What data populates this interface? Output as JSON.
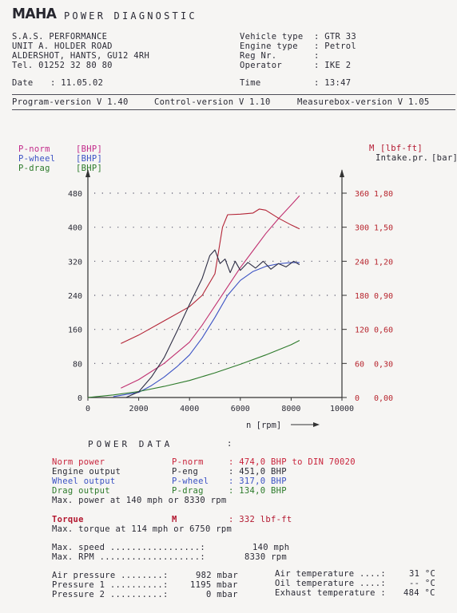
{
  "header": {
    "brand": "MAHA",
    "title": "POWER DIAGNOSTIC"
  },
  "customer": {
    "line1": "S.A.S. PERFORMANCE",
    "line2": "UNIT A.  HOLDER ROAD",
    "line3": "ALDERSHOT,  HANTS,  GU12 4RH",
    "line4": "Tel.  01252 32 80 80",
    "date_label": "Date",
    "date_value": ": 11.05.02"
  },
  "vehicle": {
    "type_label": "Vehicle type",
    "type_value": ": GTR 33",
    "engine_label": "Engine type",
    "engine_value": ": Petrol",
    "reg_label": "Reg Nr.",
    "reg_value": ":",
    "operator_label": "Operator",
    "operator_value": ": IKE 2",
    "time_label": "Time",
    "time_value": ": 13:47"
  },
  "versions": {
    "program": "Program-version V 1.40",
    "control": "Control-version V 1.10",
    "measurebox": "Measurebox-version V 1.05"
  },
  "colors": {
    "p_norm": "#c03070",
    "p_wheel": "#3b52c4",
    "p_drag": "#2c7a2a",
    "torque": "#b32436",
    "intake": "#d06050",
    "pressure": "#2e2e45"
  },
  "chart_data": {
    "type": "line",
    "legend_left": [
      {
        "name": "P-norm",
        "unit": "[BHP]"
      },
      {
        "name": "P-wheel",
        "unit": "[BHP]"
      },
      {
        "name": "P-drag",
        "unit": "[BHP]"
      }
    ],
    "legend_right": [
      {
        "name": "M",
        "unit": "[lbf-ft]"
      },
      {
        "name": "Intake.pr.",
        "unit": "[bar]"
      }
    ],
    "xlabel": "n [rpm]",
    "xlim": [
      0,
      10000
    ],
    "x_ticks": [
      "0",
      "2000",
      "4000",
      "6000",
      "8000",
      "10000"
    ],
    "ylim_left": [
      0,
      480
    ],
    "y_ticks_left": [
      "0",
      "80",
      "160",
      "240",
      "320",
      "400",
      "480"
    ],
    "y_ticks_torque": [
      "0",
      "60",
      "120",
      "180",
      "240",
      "300",
      "360"
    ],
    "y_ticks_pressure": [
      "0,00",
      "0,30",
      "0,60",
      "0,90",
      "1,20",
      "1,50",
      "1,80"
    ],
    "ylim_torque": [
      0,
      360
    ],
    "ylim_pressure": [
      0,
      1.8
    ],
    "series": [
      {
        "name": "P-norm",
        "color": "#c03070",
        "axis": "left",
        "x": [
          1300,
          2000,
          3000,
          4000,
          4500,
          5000,
          5500,
          6000,
          6500,
          7000,
          7500,
          8000,
          8330
        ],
        "y": [
          22,
          42,
          80,
          130,
          170,
          215,
          260,
          305,
          345,
          385,
          420,
          452,
          474
        ]
      },
      {
        "name": "P-wheel",
        "color": "#3b52c4",
        "axis": "left",
        "x": [
          1000,
          2000,
          2500,
          3000,
          3500,
          4000,
          4500,
          5000,
          5500,
          6000,
          6500,
          7000,
          7500,
          8000,
          8330
        ],
        "y": [
          2,
          12,
          28,
          48,
          72,
          100,
          140,
          188,
          240,
          275,
          296,
          308,
          314,
          317,
          317
        ]
      },
      {
        "name": "P-drag",
        "color": "#2c7a2a",
        "axis": "left",
        "x": [
          0,
          1000,
          2000,
          3000,
          4000,
          5000,
          6000,
          7000,
          8000,
          8330
        ],
        "y": [
          0,
          6,
          14,
          26,
          40,
          58,
          78,
          100,
          124,
          134
        ]
      },
      {
        "name": "M",
        "color": "#b32436",
        "axis": "torque",
        "x": [
          1300,
          2000,
          3000,
          4000,
          4500,
          5000,
          5300,
          5500,
          6000,
          6500,
          6750,
          7000,
          7500,
          8000,
          8330
        ],
        "y": [
          95,
          110,
          135,
          160,
          180,
          218,
          300,
          322,
          323,
          325,
          332,
          330,
          316,
          304,
          297
        ]
      },
      {
        "name": "Intake.pr.",
        "color": "#2e2e45",
        "axis": "pressure",
        "x": [
          1500,
          2000,
          2500,
          3000,
          3500,
          4000,
          4500,
          4800,
          5000,
          5200,
          5400,
          5600,
          5800,
          6000,
          6300,
          6600,
          6900,
          7200,
          7500,
          7800,
          8100,
          8330
        ],
        "y": [
          0.0,
          0.05,
          0.18,
          0.35,
          0.58,
          0.82,
          1.05,
          1.25,
          1.3,
          1.18,
          1.22,
          1.1,
          1.2,
          1.12,
          1.19,
          1.14,
          1.2,
          1.13,
          1.18,
          1.15,
          1.2,
          1.17
        ]
      }
    ],
    "grid": true
  },
  "power_data": {
    "title": "POWER DATA",
    "colon": ":",
    "rows": [
      {
        "label": "Norm power",
        "sym": "P-norm",
        "value": ": 474,0 BHP to DIN 70020"
      },
      {
        "label": "Engine output",
        "sym": "P-eng",
        "value": ": 451,0 BHP"
      },
      {
        "label": "Wheel output",
        "sym": "P-wheel",
        "value": ": 317,0 BHP"
      },
      {
        "label": "Drag output",
        "sym": "P-drag",
        "value": ": 134,0 BHP"
      }
    ],
    "max_power": "Max. power at  140 mph  or   8330 rpm",
    "torque_label": "Torque",
    "torque_sym": "M",
    "torque_value": ":   332 lbf-ft",
    "max_torque": "Max. torque at 114 mph or  6750 rpm",
    "max_speed_label": "Max. speed  .................:",
    "max_speed_value": "140 mph",
    "max_rpm_label": "Max. RPM  ...................:",
    "max_rpm_value": "8330 rpm",
    "air_pressure_label": "Air pressure ........:",
    "air_pressure_value": "982 mbar",
    "pressure1_label": "Pressure 1 ..........:",
    "pressure1_value": "1195 mbar",
    "pressure2_label": "Pressure 2 ..........:",
    "pressure2_value": "0 mbar",
    "air_temp_label": "Air temperature ....:",
    "air_temp_value": "31 °C",
    "oil_temp_label": "Oil temperature ....:",
    "oil_temp_value": "-- °C",
    "exhaust_temp_label": "Exhaust temperature :",
    "exhaust_temp_value": "484 °C"
  }
}
